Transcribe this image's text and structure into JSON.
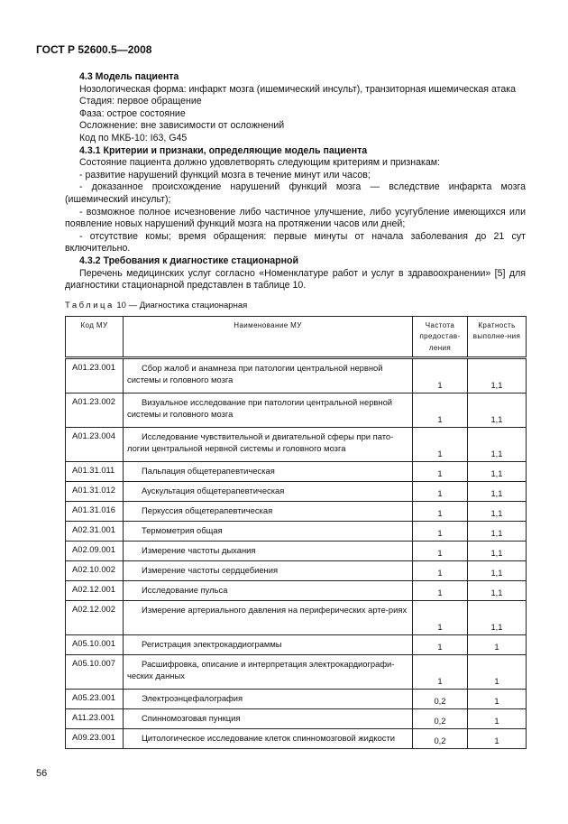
{
  "header": "ГОСТ Р 52600.5—2008",
  "paragraphs": [
    {
      "type": "h",
      "text": "4.3 Модель пациента"
    },
    {
      "type": "ind",
      "text": "Нозологическая форма: инфаркт мозга (ишемический инсульт), транзиторная ишемическая атака"
    },
    {
      "type": "ind",
      "text": "Стадия: первое обращение"
    },
    {
      "type": "ind",
      "text": "Фаза: острое состояние"
    },
    {
      "type": "ind",
      "text": "Осложнение: вне зависимости от осложнений"
    },
    {
      "type": "ind",
      "text": "Код по МКБ-10: I63, G45"
    },
    {
      "type": "h",
      "text": "4.3.1 Критерии и признаки, определяющие модель пациента"
    },
    {
      "type": "ind",
      "text": "Состояние пациента должно удовлетворять следующим критериям и признакам:"
    },
    {
      "type": "ind",
      "text": "- развитие нарушений функций мозга в течение минут или часов;"
    },
    {
      "type": "ind",
      "text": "- доказанное происхождение нарушений функций мозга — вследствие инфаркта мозга (ишемический инсульт);"
    },
    {
      "type": "ind",
      "text": "- возможное полное исчезновение либо частичное улучшение, либо усугубление имеющихся или появление новых нарушений функций мозга на протяжении часов или дней;"
    },
    {
      "type": "ind",
      "text": "- отсутствие комы; время обращения: первые минуты от начала заболевания до 21 сут включительно."
    },
    {
      "type": "h",
      "text": "4.3.2 Требования к диагностике стационарной"
    },
    {
      "type": "ind",
      "text": "Перечень медицинских услуг согласно «Номенклатуре работ и услуг в здравоохранении» [5] для диагностики стационарной представлен в таблице 10."
    }
  ],
  "table": {
    "caption_label": "Таблица",
    "caption_rest": "10 — Диагностика стационарная",
    "headers": [
      "Код МУ",
      "Наименование МУ",
      "Частота предостав-ления",
      "Кратность выполне-ния"
    ],
    "rows": [
      {
        "code": "A01.23.001",
        "name": "Сбор жалоб и анамнеза при патологии  центральной  нервной системы и головного мозга",
        "freq": "1",
        "mult": "1,1",
        "tall": true
      },
      {
        "code": "A01.23.002",
        "name": "Визуальное исследование при патологии центральной нервной системы и головного мозга",
        "freq": "1",
        "mult": "1,1",
        "tall": true
      },
      {
        "code": "A01.23.004",
        "name": "Исследование чувствительной и двигательной сферы при пато-логии центральной нервной системы и головного мозга",
        "freq": "1",
        "mult": "1,1",
        "tall": true
      },
      {
        "code": "A01.31.011",
        "name": "Пальпация общетерапевтическая",
        "freq": "1",
        "mult": "1,1"
      },
      {
        "code": "A01.31.012",
        "name": "Аускультация общетерапевтическая",
        "freq": "1",
        "mult": "1,1"
      },
      {
        "code": "A01.31.016",
        "name": "Перкуссия общетерапевтическая",
        "freq": "1",
        "mult": "1,1"
      },
      {
        "code": "A02.31.001",
        "name": "Термометрия общая",
        "freq": "1",
        "mult": "1,1"
      },
      {
        "code": "A02.09.001",
        "name": "Измерение частоты дыхания",
        "freq": "1",
        "mult": "1,1"
      },
      {
        "code": "A02.10.002",
        "name": "Измерение частоты сердцебиения",
        "freq": "1",
        "mult": "1,1"
      },
      {
        "code": "A02.12.001",
        "name": "Исследование пульса",
        "freq": "1",
        "mult": "1,1"
      },
      {
        "code": "A02.12.002",
        "name": "Измерение артериального давления на периферических арте-риях",
        "freq": "1",
        "mult": "1,1",
        "tall": true
      },
      {
        "code": "A05.10.001",
        "name": "Регистрация электрокардиограммы",
        "freq": "1",
        "mult": "1"
      },
      {
        "code": "A05.10.007",
        "name": "Расшифровка, описание и интерпретация электрокардиографи-ческих данных",
        "freq": "1",
        "mult": "1",
        "tall": true
      },
      {
        "code": "A05.23.001",
        "name": "Электроэнцефалография",
        "freq": "0,2",
        "mult": "1"
      },
      {
        "code": "A11.23.001",
        "name": "Спинномозговая пункция",
        "freq": "0,2",
        "mult": "1"
      },
      {
        "code": "A09.23.001",
        "name": "Цитологическое исследование клеток спинномозговой жидкости",
        "freq": "0,2",
        "mult": "1"
      }
    ]
  },
  "page_number": "56"
}
